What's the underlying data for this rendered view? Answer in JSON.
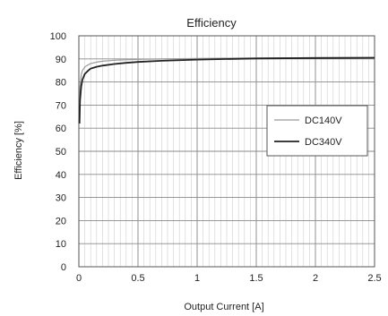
{
  "chart_data": {
    "type": "line",
    "title": "Efficiency",
    "xlabel": "Output Current [A]",
    "ylabel": "Efficiency [%]",
    "xlim": [
      0,
      2.5
    ],
    "ylim": [
      0,
      100
    ],
    "x_ticks": [
      0,
      0.5,
      1,
      1.5,
      2,
      2.5
    ],
    "x_tick_labels": [
      "0",
      "0.5",
      "1",
      "1.5",
      "2",
      "2.5"
    ],
    "x_minor_step": 0.05,
    "y_ticks": [
      0,
      10,
      20,
      30,
      40,
      50,
      60,
      70,
      80,
      90,
      100
    ],
    "y_tick_labels": [
      "0",
      "10",
      "20",
      "30",
      "40",
      "50",
      "60",
      "70",
      "80",
      "90",
      "100"
    ],
    "grid": true,
    "legend_position": "right",
    "series": [
      {
        "name": "DC140V",
        "color": "#9a9a9a",
        "x": [
          0.005,
          0.01,
          0.02,
          0.03,
          0.05,
          0.08,
          0.1,
          0.15,
          0.2,
          0.3,
          0.4,
          0.5,
          0.7,
          1.0,
          1.5,
          2.0,
          2.5
        ],
        "y": [
          70,
          78,
          83,
          85,
          86.5,
          87.5,
          88,
          88.6,
          89,
          89.4,
          89.6,
          89.8,
          90,
          90.2,
          90.4,
          90.5,
          90.5
        ]
      },
      {
        "name": "DC340V",
        "color": "#222222",
        "x": [
          0.005,
          0.01,
          0.02,
          0.03,
          0.05,
          0.08,
          0.1,
          0.15,
          0.2,
          0.3,
          0.4,
          0.5,
          0.7,
          1.0,
          1.5,
          2.0,
          2.5
        ],
        "y": [
          62,
          72,
          78,
          81,
          83.5,
          85,
          85.8,
          86.6,
          87.1,
          87.8,
          88.3,
          88.7,
          89.2,
          89.7,
          90.2,
          90.4,
          90.5
        ]
      }
    ]
  }
}
